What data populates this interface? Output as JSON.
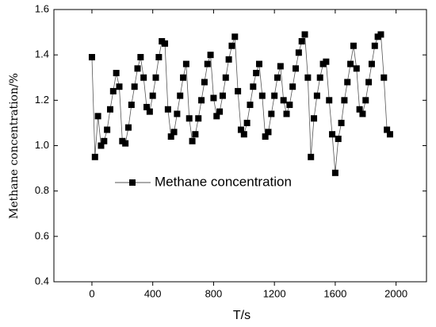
{
  "chart_data": {
    "type": "line",
    "x_label": "T/s",
    "y_label": "Methane concentration/%",
    "x": [
      0,
      20,
      40,
      60,
      80,
      100,
      120,
      140,
      160,
      180,
      200,
      220,
      240,
      260,
      280,
      300,
      320,
      340,
      360,
      380,
      400,
      420,
      440,
      460,
      480,
      500,
      520,
      540,
      560,
      580,
      600,
      620,
      640,
      660,
      680,
      700,
      720,
      740,
      760,
      780,
      800,
      820,
      840,
      860,
      880,
      900,
      920,
      940,
      960,
      980,
      1000,
      1020,
      1040,
      1060,
      1080,
      1100,
      1120,
      1140,
      1160,
      1180,
      1200,
      1220,
      1240,
      1260,
      1280,
      1300,
      1320,
      1340,
      1360,
      1380,
      1400,
      1420,
      1440,
      1460,
      1480,
      1500,
      1520,
      1540,
      1560,
      1580,
      1600,
      1620,
      1640,
      1660,
      1680,
      1700,
      1720,
      1740,
      1760,
      1780,
      1800,
      1820,
      1840,
      1860,
      1880,
      1900,
      1920,
      1940,
      1960
    ],
    "series": [
      {
        "name": "Methane concentration",
        "color": "#000000",
        "values": [
          1.39,
          0.95,
          1.13,
          1.0,
          1.02,
          1.07,
          1.16,
          1.24,
          1.32,
          1.26,
          1.02,
          1.01,
          1.08,
          1.18,
          1.26,
          1.34,
          1.39,
          1.3,
          1.17,
          1.15,
          1.22,
          1.3,
          1.39,
          1.46,
          1.45,
          1.16,
          1.04,
          1.06,
          1.14,
          1.22,
          1.3,
          1.36,
          1.12,
          1.02,
          1.05,
          1.12,
          1.2,
          1.28,
          1.36,
          1.4,
          1.21,
          1.13,
          1.15,
          1.22,
          1.3,
          1.38,
          1.44,
          1.48,
          1.24,
          1.07,
          1.05,
          1.1,
          1.18,
          1.26,
          1.32,
          1.36,
          1.22,
          1.04,
          1.06,
          1.14,
          1.22,
          1.3,
          1.35,
          1.2,
          1.14,
          1.18,
          1.26,
          1.34,
          1.41,
          1.46,
          1.49,
          1.3,
          0.95,
          1.12,
          1.22,
          1.3,
          1.36,
          1.37,
          1.2,
          1.05,
          0.88,
          1.03,
          1.1,
          1.2,
          1.28,
          1.36,
          1.44,
          1.34,
          1.16,
          1.14,
          1.2,
          1.28,
          1.36,
          1.44,
          1.48,
          1.49,
          1.3,
          1.07,
          1.05
        ]
      }
    ],
    "xlim": [
      -250,
      2200
    ],
    "xticks": [
      0,
      400,
      800,
      1200,
      1600,
      2000
    ],
    "ylim": [
      0.4,
      1.6
    ],
    "yticks": [
      0.4,
      0.6,
      0.8,
      {
        "value": 1,
        "label": "1.0"
      },
      1.2,
      1.4,
      1.6
    ],
    "legend": "center-left",
    "grid": false
  }
}
